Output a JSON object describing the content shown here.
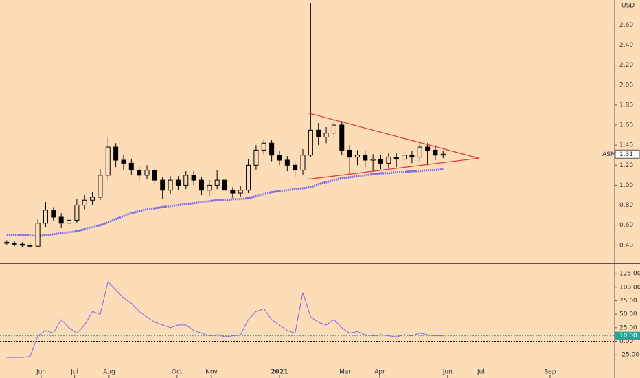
{
  "chart_data": [
    {
      "type": "candlestick",
      "y_unit": "USD",
      "symbol": "ASM",
      "last_value": 1.31,
      "last_value_label": "1.31",
      "color": "#000000",
      "up_fill": "#fddcb8",
      "background": "#fddcb8",
      "x": [
        0,
        7,
        14,
        21,
        28,
        35,
        42,
        49,
        56,
        63,
        70,
        77,
        84,
        91,
        98,
        105,
        112,
        119,
        126,
        133,
        140,
        147,
        154,
        161,
        168,
        175,
        182,
        189,
        196,
        203,
        210,
        217,
        224,
        231,
        238,
        245,
        252,
        259,
        266,
        273,
        280,
        287,
        294,
        301,
        308,
        315,
        322,
        329,
        336,
        343,
        350,
        357,
        364,
        371,
        378,
        385,
        392
      ],
      "open": [
        0.43,
        0.42,
        0.41,
        0.4,
        0.39,
        0.62,
        0.75,
        0.68,
        0.62,
        0.65,
        0.8,
        0.85,
        0.88,
        1.1,
        1.38,
        1.25,
        1.22,
        1.15,
        1.1,
        1.15,
        1.05,
        0.95,
        1.05,
        1.0,
        1.1,
        1.05,
        0.95,
        1.0,
        1.05,
        0.95,
        0.92,
        0.95,
        1.2,
        1.35,
        1.42,
        1.3,
        1.25,
        1.2,
        1.15,
        1.3,
        1.55,
        1.48,
        1.52,
        1.6,
        1.35,
        1.28,
        1.3,
        1.25,
        1.26,
        1.22,
        1.28,
        1.26,
        1.3,
        1.28,
        1.38,
        1.35,
        1.3
      ],
      "high": [
        0.45,
        0.44,
        0.43,
        0.42,
        0.66,
        0.83,
        0.78,
        0.72,
        0.7,
        0.86,
        0.9,
        0.93,
        1.16,
        1.48,
        1.42,
        1.3,
        1.26,
        1.19,
        1.2,
        1.18,
        1.08,
        1.09,
        1.09,
        1.14,
        1.14,
        1.08,
        1.05,
        1.15,
        1.08,
        0.98,
        0.99,
        1.26,
        1.4,
        1.46,
        1.45,
        1.34,
        1.29,
        1.24,
        1.36,
        2.82,
        1.62,
        1.58,
        1.66,
        1.64,
        1.4,
        1.35,
        1.34,
        1.31,
        1.3,
        1.32,
        1.32,
        1.34,
        1.34,
        1.44,
        1.42,
        1.4,
        1.34
      ],
      "low": [
        0.4,
        0.39,
        0.38,
        0.37,
        0.38,
        0.58,
        0.64,
        0.57,
        0.58,
        0.62,
        0.76,
        0.8,
        0.85,
        1.05,
        1.18,
        1.15,
        1.1,
        1.04,
        1.06,
        1.0,
        0.86,
        0.91,
        0.95,
        0.96,
        1.0,
        0.9,
        0.89,
        0.96,
        0.9,
        0.87,
        0.88,
        0.92,
        1.15,
        1.3,
        1.24,
        1.2,
        1.14,
        1.08,
        1.1,
        1.28,
        1.4,
        1.42,
        1.46,
        1.3,
        1.12,
        1.2,
        1.18,
        1.14,
        1.16,
        1.17,
        1.18,
        1.2,
        1.22,
        1.24,
        1.2,
        1.25,
        1.27
      ],
      "close": [
        0.42,
        0.41,
        0.4,
        0.39,
        0.62,
        0.75,
        0.68,
        0.62,
        0.65,
        0.8,
        0.85,
        0.88,
        1.1,
        1.38,
        1.25,
        1.22,
        1.15,
        1.1,
        1.15,
        1.05,
        0.95,
        1.05,
        1.0,
        1.1,
        1.05,
        0.95,
        1.0,
        1.05,
        0.95,
        0.92,
        0.95,
        1.2,
        1.35,
        1.42,
        1.3,
        1.25,
        1.2,
        1.15,
        1.3,
        1.55,
        1.48,
        1.52,
        1.6,
        1.35,
        1.28,
        1.3,
        1.25,
        1.26,
        1.22,
        1.28,
        1.26,
        1.3,
        1.28,
        1.38,
        1.35,
        1.3,
        1.31
      ],
      "series": [
        {
          "color": "#7b68ee",
          "values": [
            0.5,
            0.5,
            0.5,
            0.5,
            0.49,
            0.5,
            0.51,
            0.52,
            0.53,
            0.54,
            0.56,
            0.58,
            0.6,
            0.63,
            0.66,
            0.69,
            0.72,
            0.74,
            0.76,
            0.77,
            0.78,
            0.79,
            0.8,
            0.81,
            0.82,
            0.83,
            0.84,
            0.85,
            0.85,
            0.86,
            0.86,
            0.87,
            0.89,
            0.91,
            0.93,
            0.94,
            0.95,
            0.96,
            0.97,
            0.98,
            1.01,
            1.03,
            1.05,
            1.07,
            1.08,
            1.09,
            1.1,
            1.11,
            1.12,
            1.12,
            1.13,
            1.13,
            1.14,
            1.14,
            1.15,
            1.15,
            1.16
          ]
        }
      ],
      "trendlines": [
        {
          "color": "#e53935",
          "x": [
            271,
            424
          ],
          "y": [
            1.72,
            1.27
          ]
        },
        {
          "color": "#e53935",
          "x": [
            271,
            424
          ],
          "y": [
            1.06,
            1.27
          ]
        }
      ],
      "xlim": [
        -6,
        546
      ],
      "ylim": [
        0.22,
        2.85
      ],
      "yticks": [
        {
          "value": 0.4,
          "label": "0.40"
        },
        {
          "value": 0.6,
          "label": "0.60"
        },
        {
          "value": 0.8,
          "label": "0.80"
        },
        {
          "value": 1.0,
          "label": "1.00"
        },
        {
          "value": 1.2,
          "label": "1.20"
        },
        {
          "value": 1.4,
          "label": "1.40"
        },
        {
          "value": 1.6,
          "label": "1.60"
        },
        {
          "value": 1.8,
          "label": "1.80"
        },
        {
          "value": 2.0,
          "label": "2.00"
        },
        {
          "value": 2.2,
          "label": "2.20"
        },
        {
          "value": 2.4,
          "label": "2.40"
        },
        {
          "value": 2.6,
          "label": "2.60"
        }
      ]
    },
    {
      "type": "line",
      "color": "#7b68ee",
      "x": [
        0,
        7,
        14,
        21,
        28,
        35,
        42,
        49,
        56,
        63,
        70,
        77,
        84,
        91,
        98,
        105,
        112,
        119,
        126,
        133,
        140,
        147,
        154,
        161,
        168,
        175,
        182,
        189,
        196,
        203,
        210,
        217,
        224,
        231,
        238,
        245,
        252,
        259,
        266,
        273,
        280,
        287,
        294,
        301,
        308,
        315,
        322,
        329,
        336,
        343,
        350,
        357,
        364,
        371,
        378,
        385,
        392
      ],
      "values": [
        -30,
        -30,
        -30,
        -28,
        10,
        20,
        15,
        40,
        25,
        15,
        30,
        55,
        50,
        110,
        95,
        80,
        70,
        55,
        45,
        35,
        30,
        25,
        30,
        30,
        20,
        15,
        10,
        12,
        8,
        10,
        12,
        40,
        55,
        60,
        40,
        30,
        20,
        15,
        90,
        45,
        35,
        30,
        40,
        25,
        15,
        18,
        12,
        10,
        12,
        10,
        8,
        12,
        10,
        15,
        12,
        10,
        10
      ],
      "hlines": [
        {
          "value": 10,
          "color": "#26a69a"
        },
        {
          "value": 0,
          "color": "#000000"
        }
      ],
      "last_value": 10,
      "last_value_label": "10.00",
      "xlim": [
        -6,
        546
      ],
      "ylim": [
        -68,
        143
      ],
      "yticks": [
        {
          "value": -25,
          "label": "-25.00"
        },
        {
          "value": 0,
          "label": "0.00"
        },
        {
          "value": 25,
          "label": "25.00"
        },
        {
          "value": 50,
          "label": "50.00"
        },
        {
          "value": 75,
          "label": "75.00"
        },
        {
          "value": 100,
          "label": "100.00"
        },
        {
          "value": 125,
          "label": "125.00"
        }
      ],
      "xticks": [
        {
          "value": 31,
          "label": "Jun"
        },
        {
          "value": 61,
          "label": "Jul"
        },
        {
          "value": 92,
          "label": "Aug"
        },
        {
          "value": 153,
          "label": "Oct"
        },
        {
          "value": 184,
          "label": "Nov"
        },
        {
          "value": 245,
          "label": "2021"
        },
        {
          "value": 304,
          "label": "Mar"
        },
        {
          "value": 335,
          "label": "Apr"
        },
        {
          "value": 396,
          "label": "Jun"
        },
        {
          "value": 426,
          "label": "Jul"
        },
        {
          "value": 488,
          "label": "Sep"
        }
      ]
    }
  ]
}
